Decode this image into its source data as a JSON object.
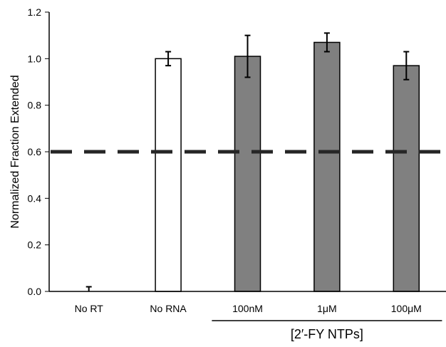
{
  "chart_data": {
    "type": "bar",
    "title": "",
    "xlabel": "",
    "ylabel": "Normalized Fraction Extended",
    "ylim": [
      0,
      1.2
    ],
    "yticks": [
      "0.0",
      "0.2",
      "0.4",
      "0.6",
      "0.8",
      "1.0",
      "1.2"
    ],
    "categories": [
      "No RT",
      "No RNA",
      "100nM",
      "1μM",
      "100μM"
    ],
    "values": [
      0.0,
      1.0,
      1.01,
      1.07,
      0.97
    ],
    "error": [
      0.02,
      0.03,
      0.09,
      0.04,
      0.06
    ],
    "bar_fill": [
      "#ffffff",
      "#ffffff",
      "#808080",
      "#808080",
      "#808080"
    ],
    "bar_stroke": "#000000",
    "reference_line": {
      "y": 0.6,
      "style": "dashed",
      "color": "#262626"
    },
    "group_label": "[2′-FY NTPs]",
    "group_categories": [
      "100nM",
      "1μM",
      "100μM"
    ],
    "grid": false,
    "legend": "none"
  }
}
